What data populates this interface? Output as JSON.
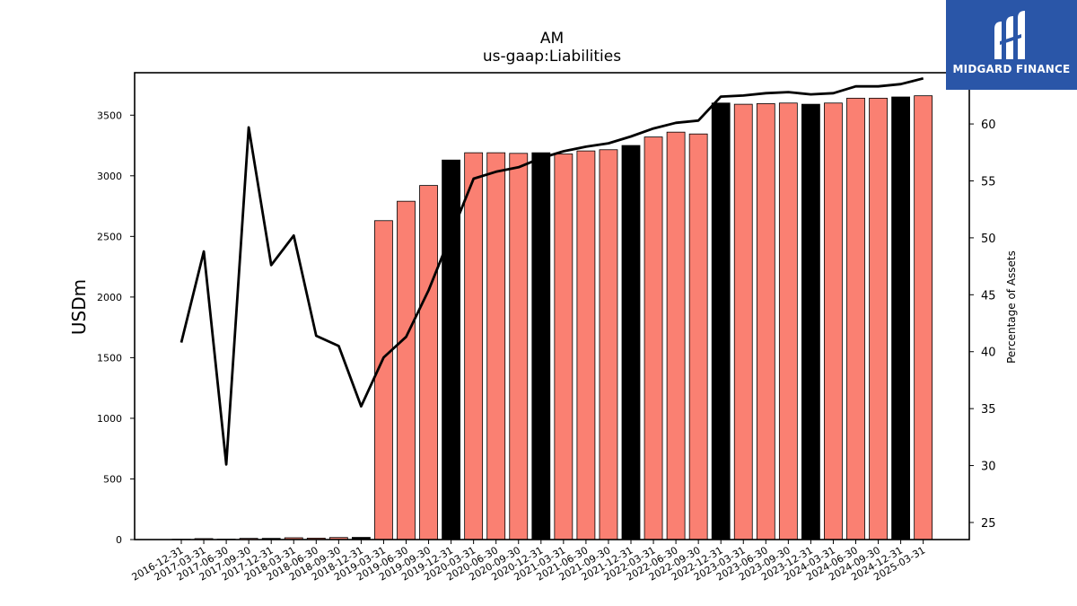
{
  "chart_data": {
    "type": "bar",
    "title": "AM",
    "subtitle": "us-gaap:Liabilities",
    "ylabel": "USDm",
    "ylabel_right": "Percentage of Assets",
    "ylim": [
      0,
      3850
    ],
    "ylim_right": [
      23.5,
      64.5
    ],
    "yticks": [
      0,
      500,
      1000,
      1500,
      2000,
      2500,
      3000,
      3500
    ],
    "yticks_right": [
      25,
      30,
      35,
      40,
      45,
      50,
      55,
      60
    ],
    "categories": [
      "2016-12-31",
      "2017-03-31",
      "2017-06-30",
      "2017-09-30",
      "2017-12-31",
      "2018-03-31",
      "2018-06-30",
      "2018-09-30",
      "2018-12-31",
      "2019-03-31",
      "2019-06-30",
      "2019-09-30",
      "2019-12-31",
      "2020-03-31",
      "2020-06-30",
      "2020-09-30",
      "2020-12-31",
      "2021-03-31",
      "2021-06-30",
      "2021-09-30",
      "2021-12-31",
      "2022-03-31",
      "2022-06-30",
      "2022-09-30",
      "2022-12-31",
      "2023-03-31",
      "2023-06-30",
      "2023-09-30",
      "2023-12-31",
      "2024-03-31",
      "2024-06-30",
      "2024-09-30",
      "2024-12-31",
      "2025-03-31"
    ],
    "series": [
      {
        "kind": "bar",
        "values": [
          3,
          8,
          4,
          10,
          10,
          15,
          12,
          17,
          18,
          2630,
          2790,
          2920,
          3130,
          3190,
          3190,
          3185,
          3190,
          3180,
          3205,
          3215,
          3250,
          3320,
          3360,
          3345,
          3600,
          3590,
          3595,
          3600,
          3590,
          3600,
          3640,
          3640,
          3650,
          3660
        ],
        "annual": [
          true,
          false,
          false,
          false,
          true,
          false,
          false,
          false,
          true,
          false,
          false,
          false,
          true,
          false,
          false,
          false,
          true,
          false,
          false,
          false,
          true,
          false,
          false,
          false,
          true,
          false,
          false,
          false,
          true,
          false,
          false,
          false,
          true,
          false
        ]
      },
      {
        "kind": "line",
        "axis": "right",
        "values": [
          40.8,
          48.8,
          30.1,
          59.7,
          47.6,
          50.2,
          41.4,
          40.5,
          35.2,
          39.5,
          41.3,
          45.4,
          50.3,
          55.2,
          55.8,
          56.2,
          57.0,
          57.6,
          58.0,
          58.3,
          58.9,
          59.6,
          60.1,
          60.3,
          62.4,
          62.5,
          62.7,
          62.8,
          62.6,
          62.7,
          63.3,
          63.3,
          63.5,
          64.0
        ]
      }
    ],
    "colors": {
      "bar": "#fa8072",
      "bar_annual": "#000000",
      "line": "#000000"
    }
  },
  "logo": {
    "text": "MIDGARD FINANCE",
    "background": "#2a56a8"
  }
}
